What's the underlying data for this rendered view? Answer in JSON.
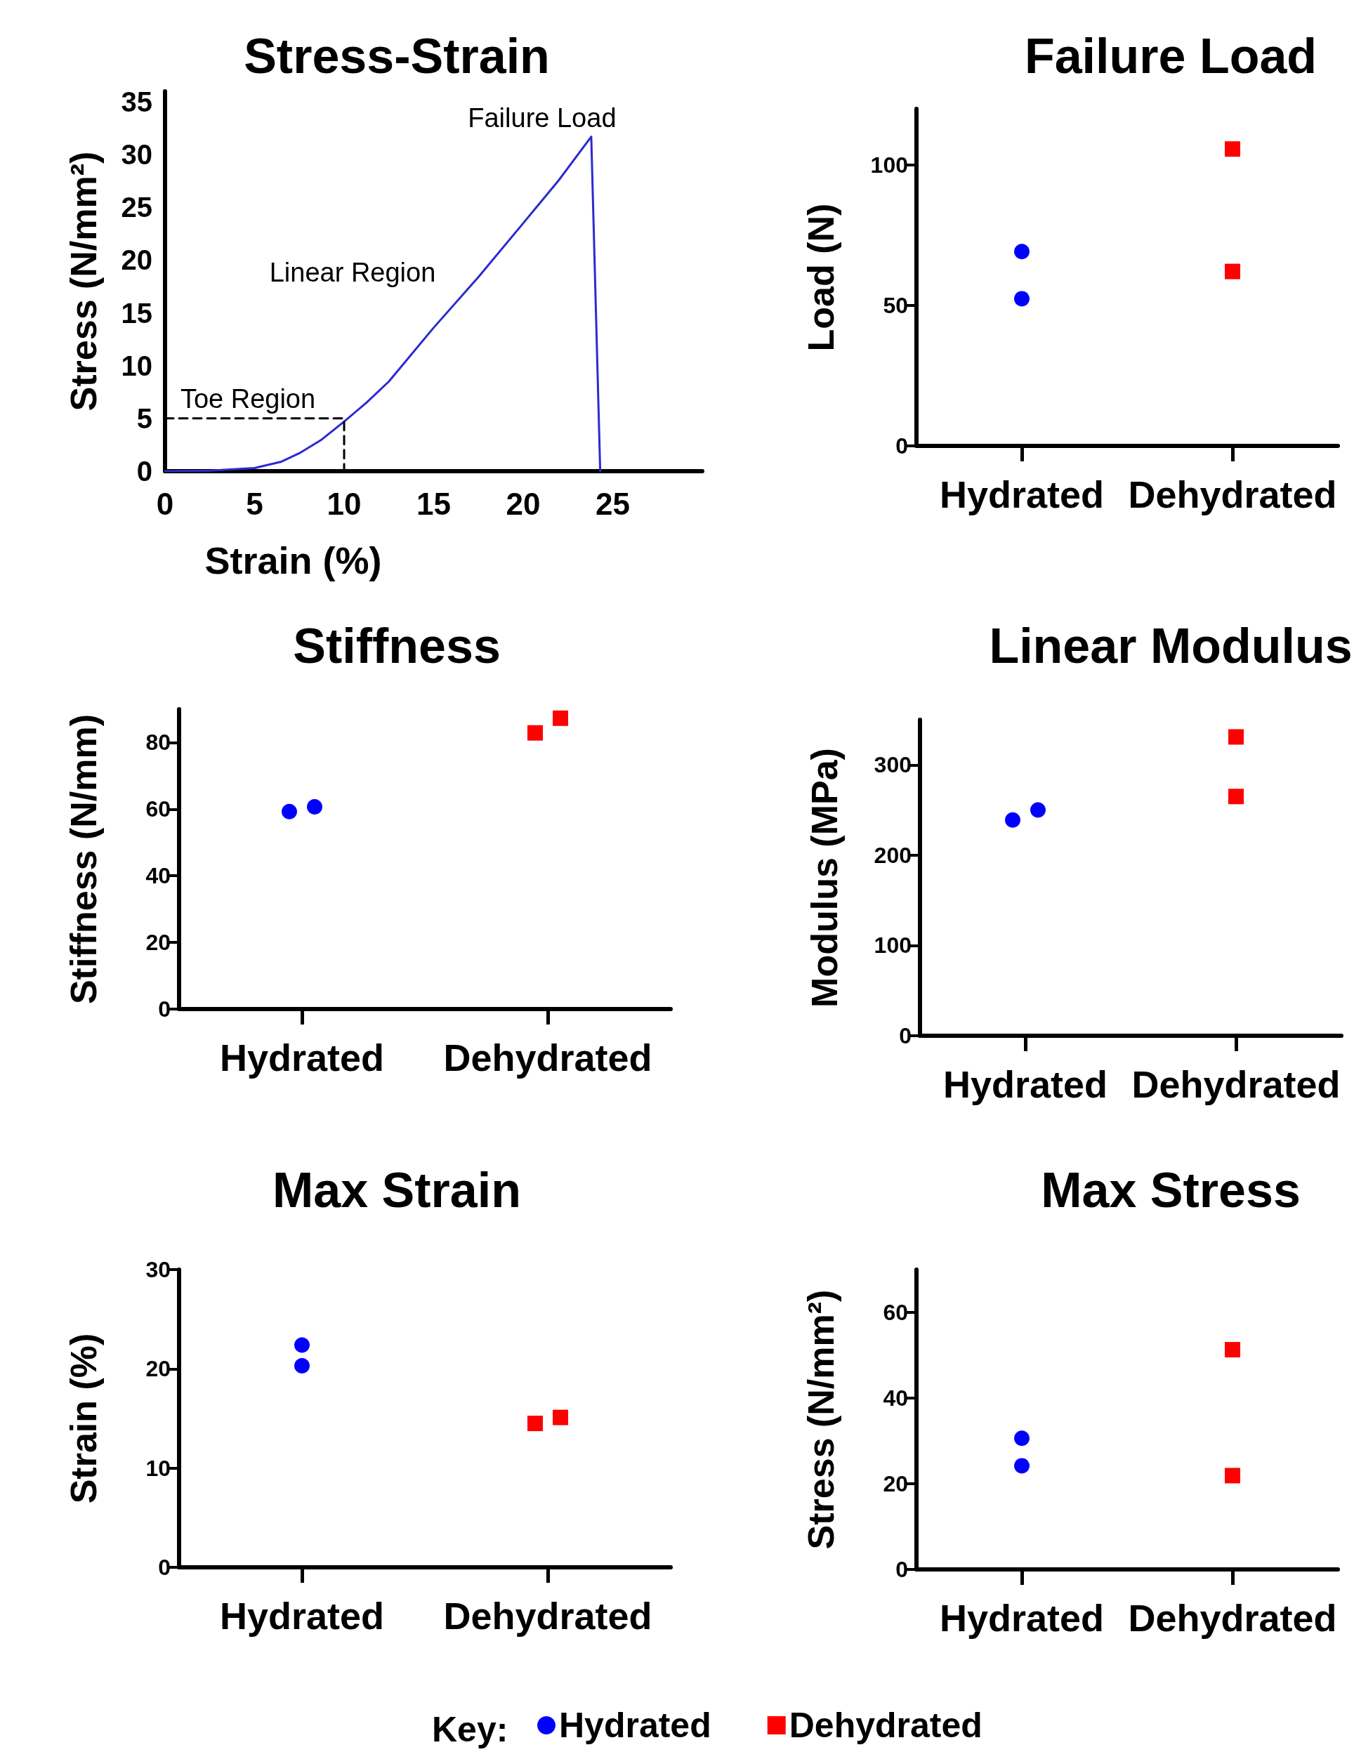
{
  "chart_data": [
    {
      "type": "line",
      "title": "Stress-Strain",
      "xlabel": "Strain (%)",
      "ylabel": "Stress (N/mm²)",
      "xlim": [
        0,
        30
      ],
      "xticks": [
        0,
        5,
        10,
        15,
        20,
        25
      ],
      "ylim": [
        0,
        36
      ],
      "yticks": [
        0,
        5,
        10,
        15,
        20,
        25,
        30,
        35
      ],
      "grid": false,
      "marker": "none",
      "series": [
        {
          "color": "#2b2bd0",
          "line_style": "solid",
          "x": [
            0,
            2.5,
            5,
            6.5,
            7.5,
            8.75,
            10,
            11.25,
            12.5,
            15,
            17.5,
            20,
            22,
            23.8,
            24.3
          ],
          "values": [
            0,
            0.05,
            0.3,
            0.9,
            1.7,
            3,
            4.7,
            6.5,
            8.5,
            13.6,
            18.4,
            23.5,
            27.6,
            31.7,
            0
          ]
        },
        {
          "color": "#000000",
          "line_style": "dashed",
          "x": [
            0,
            10,
            10
          ],
          "values": [
            5,
            5,
            0
          ]
        }
      ],
      "annotations": [
        {
          "text": "Failure Load",
          "x": 23.8,
          "y": 31.7
        },
        "Linear Region",
        "Toe Region"
      ]
    },
    {
      "type": "scatter",
      "title": "Failure Load",
      "ylabel": "Load (N)",
      "categories": [
        "Hydrated",
        "Dehydrated"
      ],
      "ylim": [
        0,
        120
      ],
      "yticks": [
        0,
        50,
        100
      ],
      "grid": false,
      "legend": false,
      "series": [
        {
          "color": "#0000ff",
          "marker": "circle",
          "x": [
            "Hydrated",
            "Hydrated"
          ],
          "values": [
            69.2,
            52.4
          ]
        },
        {
          "color": "#ff0000",
          "marker": "square",
          "x": [
            "Dehydrated",
            "Dehydrated"
          ],
          "values": [
            105.7,
            62.1
          ]
        }
      ]
    },
    {
      "type": "scatter",
      "title": "Stiffness",
      "ylabel": "Stiffness (N/mm)",
      "categories": [
        "Hydrated",
        "Dehydrated"
      ],
      "ylim": [
        0,
        90
      ],
      "yticks": [
        0,
        20,
        40,
        60,
        80
      ],
      "grid": false,
      "legend": false,
      "series": [
        {
          "color": "#0000ff",
          "marker": "circle",
          "x": [
            "Hydrated",
            "Hydrated"
          ],
          "values": [
            59.3,
            60.7
          ]
        },
        {
          "color": "#ff0000",
          "marker": "square",
          "x": [
            "Dehydrated",
            "Dehydrated"
          ],
          "values": [
            82.9,
            87.3
          ]
        }
      ]
    },
    {
      "type": "scatter",
      "title": "Linear Modulus",
      "ylabel": "Modulus (MPa)",
      "categories": [
        "Hydrated",
        "Dehydrated"
      ],
      "ylim": [
        0,
        350
      ],
      "yticks": [
        0,
        100,
        200,
        300
      ],
      "grid": false,
      "legend": false,
      "series": [
        {
          "color": "#0000ff",
          "marker": "circle",
          "x": [
            "Hydrated",
            "Hydrated"
          ],
          "values": [
            239,
            250
          ]
        },
        {
          "color": "#ff0000",
          "marker": "square",
          "x": [
            "Dehydrated",
            "Dehydrated"
          ],
          "values": [
            331,
            265
          ]
        }
      ]
    },
    {
      "type": "scatter",
      "title": "Max Strain",
      "ylabel": "Strain (%)",
      "categories": [
        "Hydrated",
        "Dehydrated"
      ],
      "ylim": [
        0,
        30
      ],
      "yticks": [
        0,
        10,
        20,
        30
      ],
      "grid": false,
      "legend": false,
      "series": [
        {
          "color": "#0000ff",
          "marker": "circle",
          "x": [
            "Hydrated",
            "Hydrated"
          ],
          "values": [
            22.4,
            20.3
          ]
        },
        {
          "color": "#ff0000",
          "marker": "square",
          "x": [
            "Dehydrated",
            "Dehydrated"
          ],
          "values": [
            14.5,
            15.1
          ]
        }
      ]
    },
    {
      "type": "scatter",
      "title": "Max Stress",
      "ylabel": "Stress (N/mm²)",
      "categories": [
        "Hydrated",
        "Dehydrated"
      ],
      "ylim": [
        0,
        70
      ],
      "yticks": [
        0,
        20,
        40,
        60
      ],
      "grid": false,
      "legend": "bottom",
      "legend_title": "Key:",
      "series": [
        {
          "name": "Hydrated",
          "color": "#0000ff",
          "marker": "circle",
          "x": [
            "Hydrated",
            "Hydrated"
          ],
          "values": [
            30.6,
            24.2
          ]
        },
        {
          "name": "Dehydrated",
          "color": "#ff0000",
          "marker": "square",
          "x": [
            "Dehydrated",
            "Dehydrated"
          ],
          "values": [
            51.3,
            21.9
          ]
        }
      ]
    }
  ]
}
